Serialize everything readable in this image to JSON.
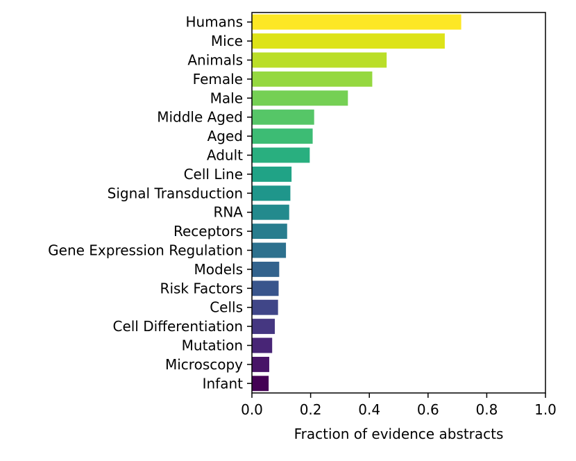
{
  "chart_data": {
    "type": "bar",
    "orientation": "horizontal",
    "title": "",
    "xlabel": "Fraction of evidence abstracts",
    "ylabel": "",
    "xlim": [
      0,
      1.0
    ],
    "xticks": [
      0.0,
      0.2,
      0.4,
      0.6,
      0.8,
      1.0
    ],
    "xtick_labels": [
      "0.0",
      "0.2",
      "0.4",
      "0.6",
      "0.8",
      "1.0"
    ],
    "grid": false,
    "colormap": "viridis",
    "categories": [
      "Humans",
      "Mice",
      "Animals",
      "Female",
      "Male",
      "Middle Aged",
      "Aged",
      "Adult",
      "Cell Line",
      "Signal Transduction",
      "RNA",
      "Receptors",
      "Gene Expression Regulation",
      "Models",
      "Risk Factors",
      "Cells",
      "Cell Differentiation",
      "Mutation",
      "Microscopy",
      "Infant"
    ],
    "values": [
      0.713,
      0.657,
      0.459,
      0.41,
      0.327,
      0.212,
      0.207,
      0.197,
      0.135,
      0.131,
      0.127,
      0.12,
      0.116,
      0.093,
      0.091,
      0.089,
      0.078,
      0.069,
      0.059,
      0.057
    ],
    "colors": [
      "#fde725",
      "#dde318",
      "#bade28",
      "#95d840",
      "#75d054",
      "#56c667",
      "#3dbc74",
      "#29af7f",
      "#20a386",
      "#1f968b",
      "#238a8d",
      "#287d8e",
      "#2d718e",
      "#33638d",
      "#39558c",
      "#404688",
      "#453781",
      "#482576",
      "#481467",
      "#440154"
    ]
  }
}
